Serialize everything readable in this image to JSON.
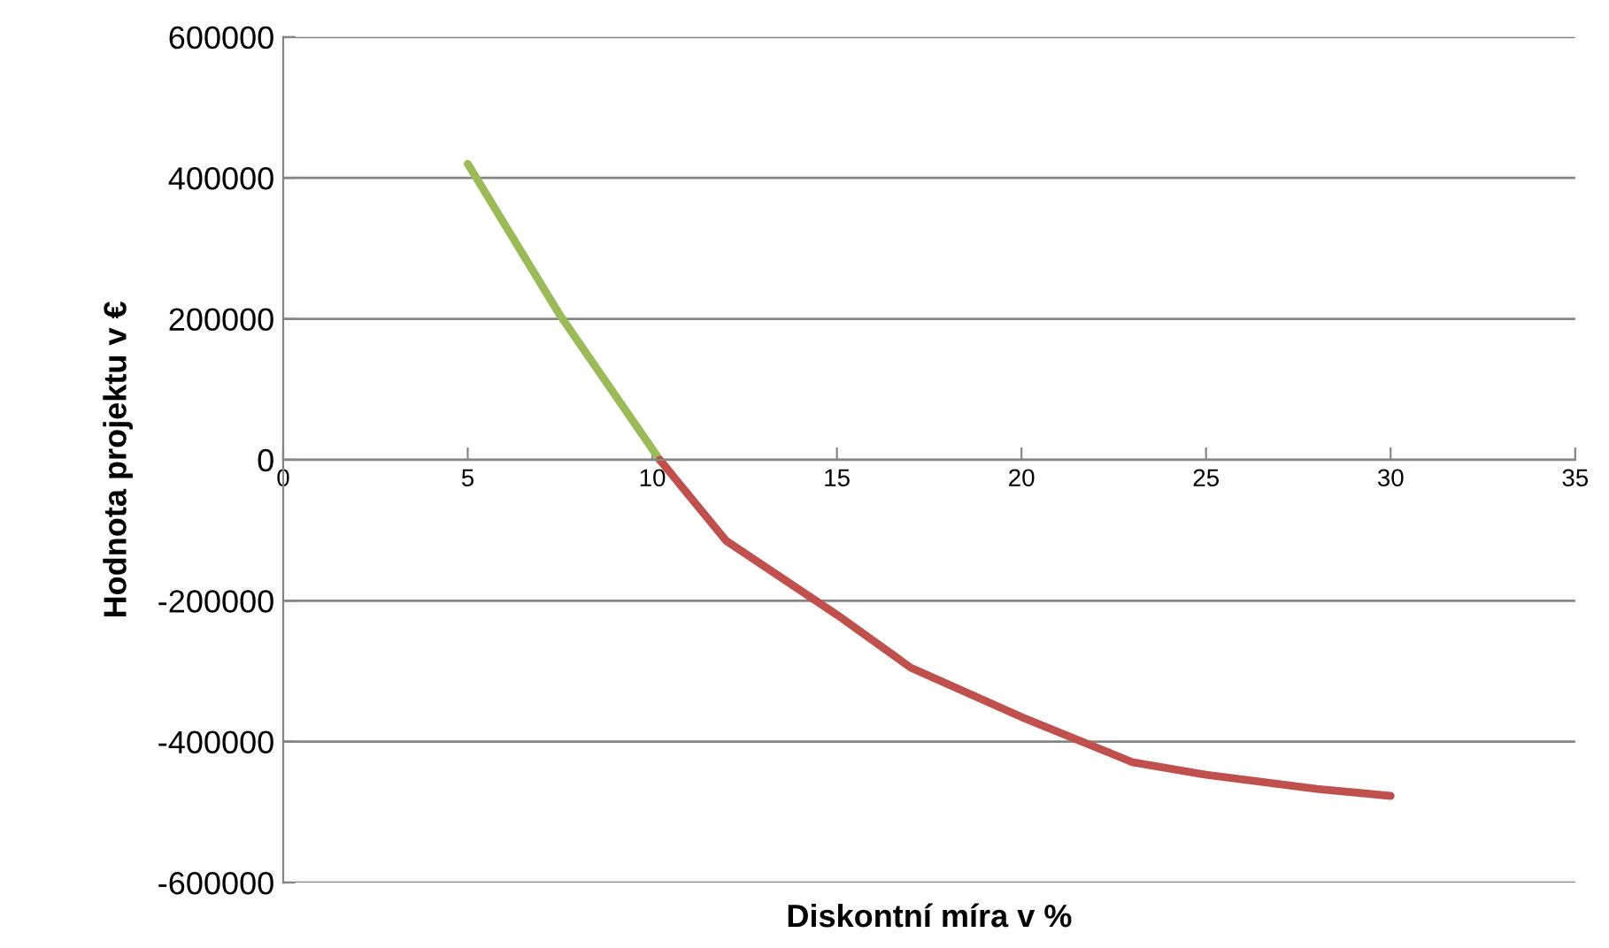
{
  "chart_data": {
    "type": "line",
    "xlabel": "Diskontní míra v %",
    "ylabel": "Hodnota projektu v €",
    "series": [
      {
        "color": "#9bbb59",
        "x": [
          5,
          7.5,
          10.2
        ],
        "values": [
          420000,
          205000,
          0
        ]
      },
      {
        "color": "#c0504d",
        "x": [
          10.2,
          12,
          15,
          17,
          20,
          23,
          25,
          28,
          30
        ],
        "values": [
          0,
          -115000,
          -220000,
          -295000,
          -365000,
          -429000,
          -447000,
          -467000,
          -477000
        ]
      }
    ],
    "xlim": [
      0,
      35
    ],
    "xticks": [
      0,
      5,
      10,
      15,
      20,
      25,
      30,
      35
    ],
    "ylim": [
      -600000,
      600000
    ],
    "yticks": [
      -600000,
      -400000,
      -200000,
      0,
      200000,
      400000,
      600000
    ],
    "grid": "y",
    "legend": false,
    "marker": "none",
    "line_style": "solid"
  }
}
